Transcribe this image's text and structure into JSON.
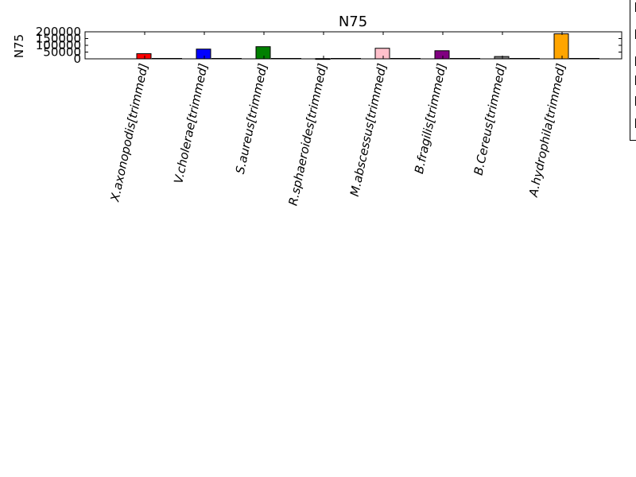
{
  "chart_data": {
    "type": "bar",
    "title": "N75",
    "ylabel": "N75",
    "xlabel": "",
    "categories": [
      "X.axonopodis[trimmed]",
      "V.cholerae[trimmed]",
      "S.aureus[trimmed]",
      "R.sphaeroides[trimmed]",
      "M.abscessus[trimmed]",
      "B.fragilis[trimmed]",
      "B.Cereus[trimmed]",
      "A.hydrophila[trimmed]"
    ],
    "values": [
      38000,
      72000,
      90000,
      2000,
      78000,
      60000,
      17000,
      185000
    ],
    "colors": [
      "#ff0000",
      "#0000ff",
      "#008000",
      "#ffffff",
      "#ffc0cb",
      "#800080",
      "#808080",
      "#ffa500"
    ],
    "ylim": [
      0,
      200000
    ],
    "yticks": [
      {
        "value": 0,
        "label": "0"
      },
      {
        "value": 50000,
        "label": "50000"
      },
      {
        "value": 100000,
        "label": "100000"
      },
      {
        "value": 150000,
        "label": "150000"
      },
      {
        "value": 200000,
        "label": "200000"
      }
    ],
    "grid": false,
    "legend": "right"
  }
}
